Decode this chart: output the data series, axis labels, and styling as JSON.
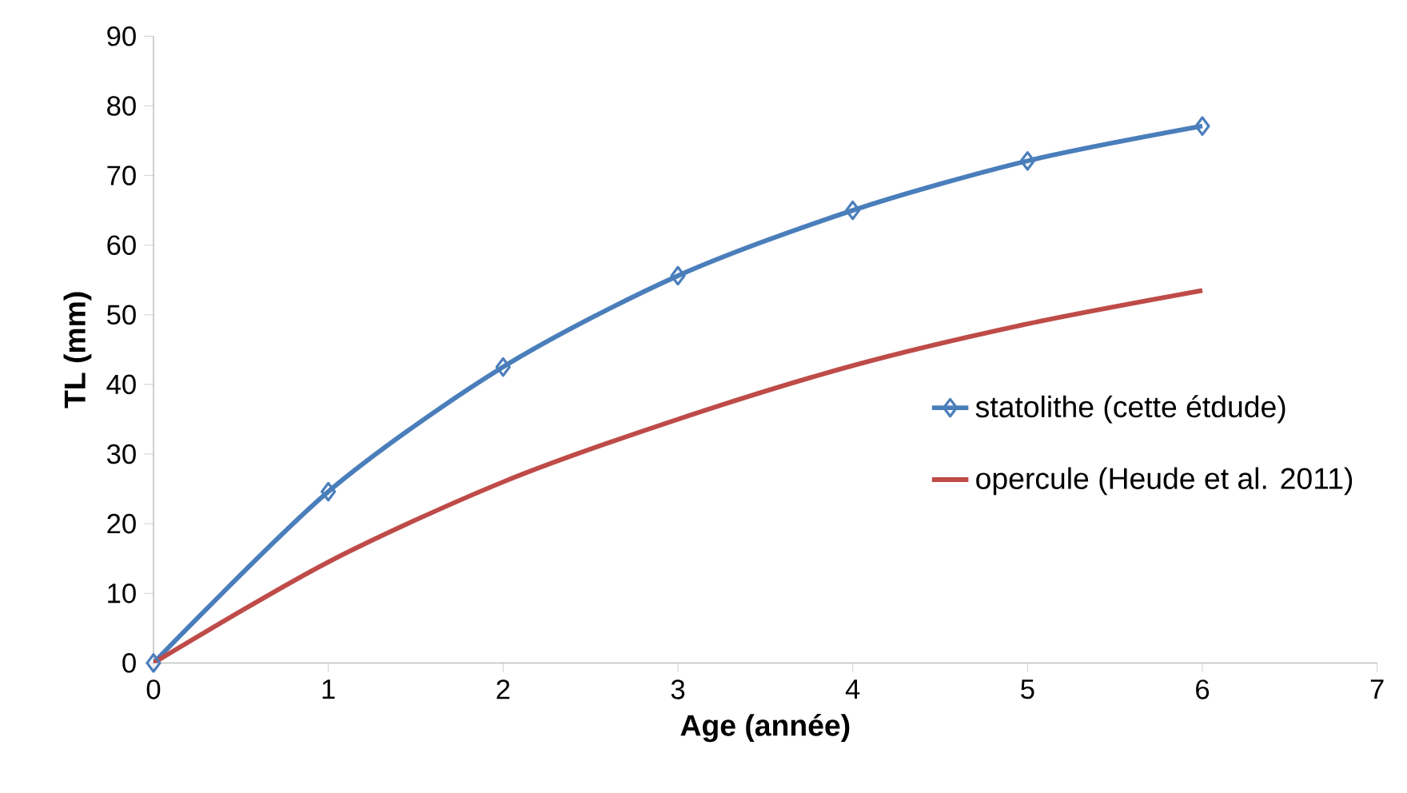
{
  "chart_data": {
    "type": "line",
    "xlabel": "Age (année)",
    "ylabel": "TL (mm)",
    "x": [
      0,
      1,
      2,
      3,
      4,
      5,
      6
    ],
    "series": [
      {
        "name": "statolithe (cette étdude)",
        "color": "#4a7ebb",
        "values": [
          0,
          24.6,
          42.5,
          55.6,
          65,
          72.1,
          77.1
        ],
        "marker": "diamond"
      },
      {
        "name": "opercule (Heude et al. 2011)",
        "color": "#be4b48",
        "values": [
          0,
          14.5,
          26,
          35,
          42.7,
          48.7,
          53.5
        ],
        "marker": "none"
      }
    ],
    "xlim": [
      0,
      7
    ],
    "ylim": [
      0,
      90
    ],
    "xticks": [
      0,
      1,
      2,
      3,
      4,
      5,
      6,
      7
    ],
    "yticks": [
      0,
      10,
      20,
      30,
      40,
      50,
      60,
      70,
      80,
      90
    ],
    "grid": false,
    "legend": "right",
    "line_style": "solid"
  }
}
